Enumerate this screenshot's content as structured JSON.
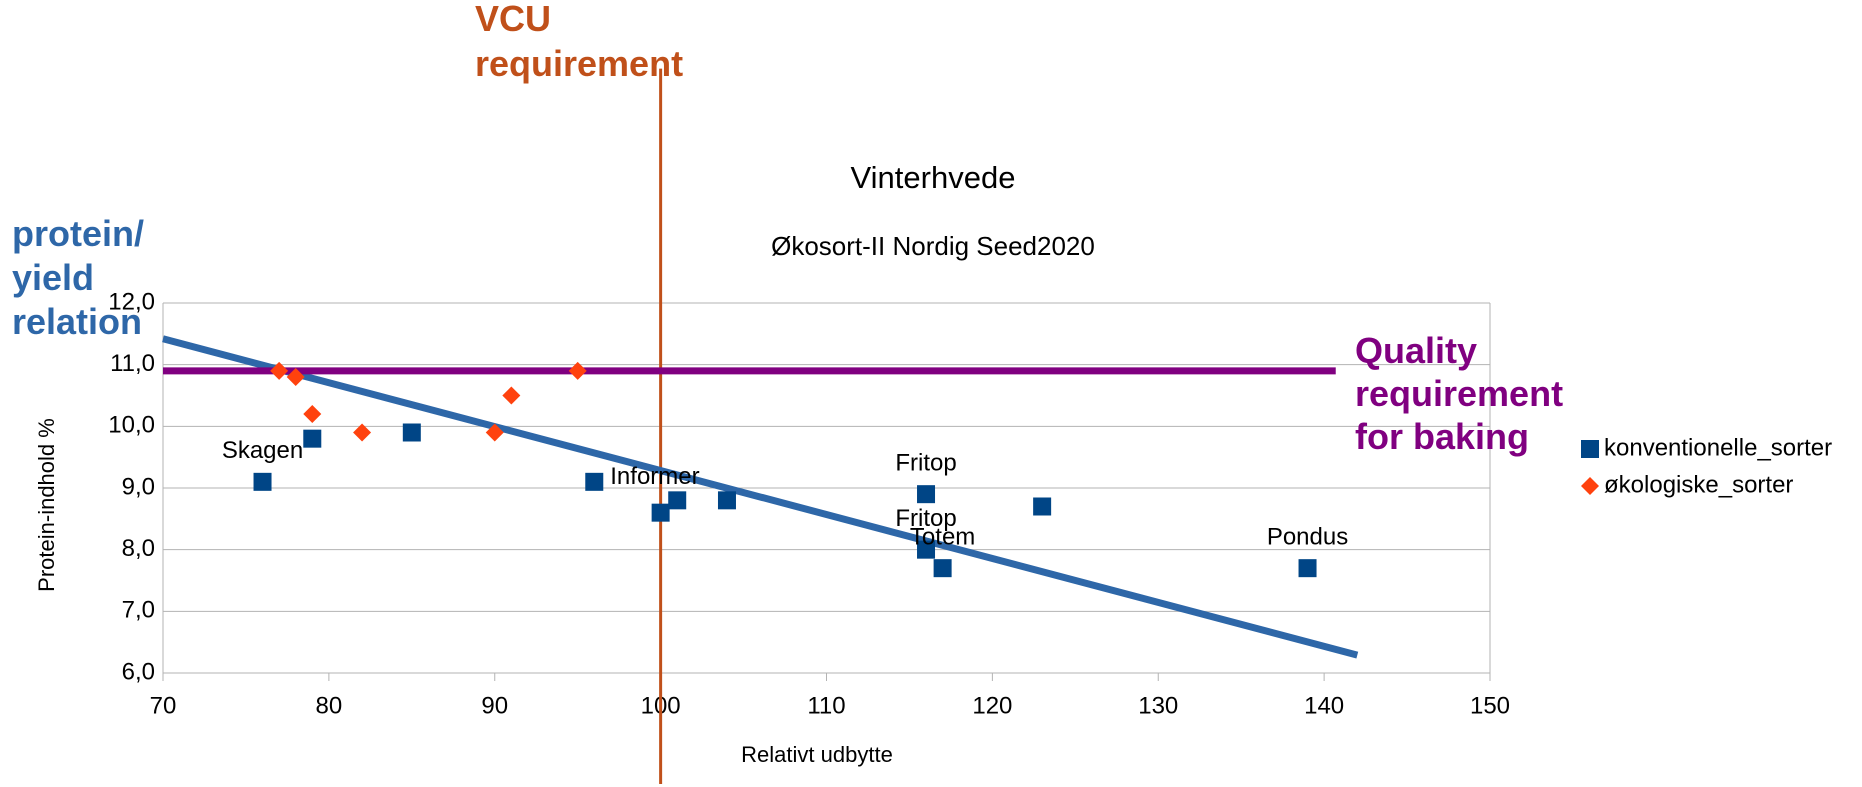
{
  "chart_data": {
    "type": "scatter",
    "title": "Vinterhvede",
    "subtitle": "Økosort-II Nordig Seed2020",
    "x_label": "Relativt udbytte",
    "y_label": "Protein-indhold %",
    "xlim": [
      70,
      150
    ],
    "xticks": [
      70,
      80,
      90,
      100,
      110,
      120,
      130,
      140,
      150
    ],
    "ylim": [
      6,
      12
    ],
    "yticks": [
      {
        "value": 6,
        "label": "6,0"
      },
      {
        "value": 7,
        "label": "7,0"
      },
      {
        "value": 8,
        "label": "8,0"
      },
      {
        "value": 9,
        "label": "9,0"
      },
      {
        "value": 10,
        "label": "10,0"
      },
      {
        "value": 11,
        "label": "11,0"
      },
      {
        "value": 12,
        "label": "12,0"
      }
    ],
    "grid": true,
    "legend": "right",
    "series": [
      {
        "name": "konventionelle_sorter",
        "color": "#004586",
        "marker": "square",
        "x": [
          76,
          79,
          85,
          96,
          100,
          101,
          104,
          116,
          116,
          117,
          123,
          139
        ],
        "values": [
          9.1,
          9.8,
          9.9,
          9.1,
          8.6,
          8.8,
          8.8,
          8.9,
          8.0,
          7.7,
          8.7,
          7.7
        ],
        "labels": [
          "Skagen",
          null,
          null,
          "Informer",
          null,
          null,
          null,
          "Fritop",
          "Fritop",
          "Totem",
          null,
          "Pondus"
        ]
      },
      {
        "name": "økologiske_sorter",
        "color": "#ff420e",
        "marker": "diamond",
        "x": [
          77,
          78,
          79,
          82,
          90,
          91,
          95
        ],
        "values": [
          10.9,
          10.8,
          10.2,
          9.9,
          9.9,
          10.5,
          10.9
        ]
      }
    ],
    "annotations": [
      {
        "text": [
          "VCU",
          "requirement"
        ],
        "color": "#c0501a",
        "x": [
          100,
          100
        ],
        "y": [
          15.8,
          4.2
        ]
      },
      {
        "text": [
          "protein/",
          "yield",
          "relation"
        ],
        "color": "#2e67a8",
        "x": [
          70,
          142
        ],
        "y": [
          11.42,
          6.29
        ]
      },
      {
        "text": [
          "Quality",
          "requirement",
          "for baking"
        ],
        "color": "#800080",
        "x": [
          70,
          140.7
        ],
        "y": [
          10.9,
          10.9
        ]
      }
    ]
  }
}
